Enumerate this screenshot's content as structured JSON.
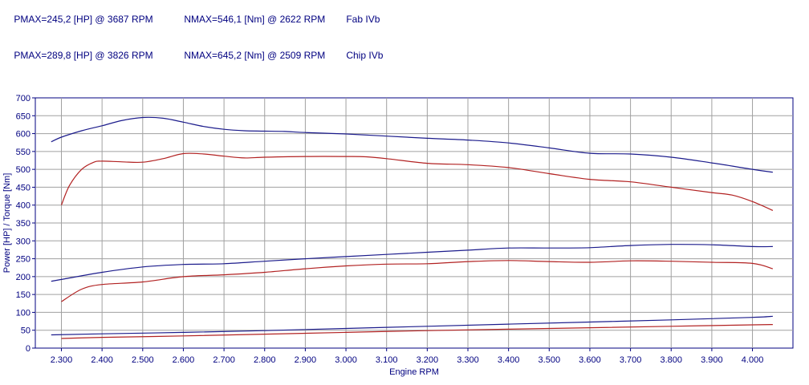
{
  "header": {
    "rows": [
      {
        "pmax": "PMAX=245,2 [HP] @ 3687 RPM",
        "nmax": "NMAX=546,1 [Nm] @ 2622 RPM",
        "label": "Fab IVb"
      },
      {
        "pmax": "PMAX=289,8 [HP] @ 3826 RPM",
        "nmax": "NMAX=645,2 [Nm] @ 2509 RPM",
        "label": "Chip IVb"
      }
    ]
  },
  "chart_data": {
    "type": "line",
    "xlabel": "Engine RPM",
    "ylabel": "Power [HP] / Torque [Nm]",
    "xlim": [
      2250,
      4100
    ],
    "ylim": [
      0,
      700
    ],
    "xticks": [
      2300,
      2400,
      2500,
      2600,
      2700,
      2800,
      2900,
      3000,
      3100,
      3200,
      3300,
      3400,
      3500,
      3600,
      3700,
      3800,
      3900,
      4000
    ],
    "xtick_labels": [
      "2.300",
      "2.400",
      "2.500",
      "2.600",
      "2.700",
      "2.800",
      "2.900",
      "3.000",
      "3.100",
      "3.200",
      "3.300",
      "3.400",
      "3.500",
      "3.600",
      "3.700",
      "3.800",
      "3.900",
      "4.000"
    ],
    "yticks": [
      0,
      50,
      100,
      150,
      200,
      250,
      300,
      350,
      400,
      450,
      500,
      550,
      600,
      650,
      700
    ],
    "grid": true,
    "colors": {
      "chip": "#1c1c8c",
      "fab": "#b22222",
      "grid": "#a0a0a0",
      "axis": "#000080"
    },
    "series": [
      {
        "name": "Chip IVb",
        "quantity": "torque",
        "color": "#1c1c8c",
        "x": [
          2275,
          2300,
          2350,
          2400,
          2450,
          2500,
          2550,
          2600,
          2650,
          2700,
          2750,
          2800,
          2850,
          2900,
          3000,
          3100,
          3200,
          3300,
          3400,
          3500,
          3600,
          3700,
          3800,
          3900,
          4000,
          4050
        ],
        "y": [
          577,
          590,
          608,
          622,
          637,
          645,
          643,
          632,
          620,
          612,
          608,
          607,
          606,
          603,
          599,
          593,
          587,
          582,
          574,
          560,
          545,
          543,
          534,
          518,
          500,
          492
        ]
      },
      {
        "name": "Fab IVb",
        "quantity": "torque",
        "color": "#b22222",
        "x": [
          2300,
          2320,
          2350,
          2380,
          2400,
          2450,
          2500,
          2550,
          2600,
          2650,
          2700,
          2750,
          2800,
          2900,
          3000,
          3050,
          3100,
          3200,
          3300,
          3400,
          3500,
          3600,
          3700,
          3800,
          3900,
          3950,
          4000,
          4050
        ],
        "y": [
          400,
          455,
          500,
          520,
          523,
          521,
          520,
          530,
          544,
          543,
          537,
          532,
          534,
          536,
          536,
          535,
          530,
          517,
          513,
          505,
          488,
          472,
          465,
          450,
          435,
          428,
          410,
          385
        ]
      },
      {
        "name": "Chip IVb",
        "quantity": "power",
        "color": "#1c1c8c",
        "x": [
          2275,
          2300,
          2400,
          2500,
          2600,
          2700,
          2800,
          2900,
          3000,
          3100,
          3200,
          3300,
          3400,
          3500,
          3600,
          3700,
          3800,
          3900,
          4000,
          4050
        ],
        "y": [
          187,
          192,
          212,
          227,
          234,
          236,
          243,
          250,
          256,
          262,
          268,
          274,
          280,
          280,
          281,
          287,
          290,
          289,
          284,
          284
        ]
      },
      {
        "name": "Fab IVb",
        "quantity": "power",
        "color": "#b22222",
        "x": [
          2300,
          2350,
          2400,
          2500,
          2600,
          2700,
          2800,
          2900,
          3000,
          3100,
          3200,
          3300,
          3400,
          3500,
          3600,
          3700,
          3800,
          3900,
          4000,
          4050
        ],
        "y": [
          130,
          165,
          178,
          185,
          200,
          205,
          212,
          222,
          230,
          235,
          236,
          242,
          245,
          242,
          240,
          244,
          243,
          240,
          237,
          222
        ]
      },
      {
        "name": "Chip IVb",
        "quantity": "loss",
        "color": "#1c1c8c",
        "x": [
          2275,
          2400,
          2600,
          2800,
          3000,
          3200,
          3400,
          3600,
          3800,
          4000,
          4050
        ],
        "y": [
          37,
          40,
          44,
          49,
          55,
          61,
          67,
          73,
          79,
          86,
          89
        ]
      },
      {
        "name": "Fab IVb",
        "quantity": "loss",
        "color": "#b22222",
        "x": [
          2300,
          2400,
          2600,
          2800,
          3000,
          3200,
          3400,
          3600,
          3800,
          4000,
          4050
        ],
        "y": [
          27,
          30,
          34,
          39,
          44,
          49,
          53,
          57,
          61,
          65,
          66
        ]
      }
    ]
  }
}
